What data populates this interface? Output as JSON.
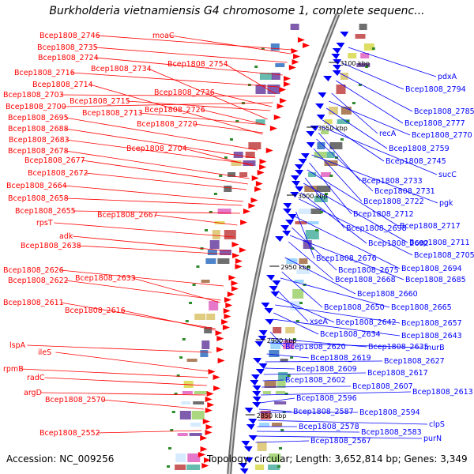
{
  "title": "Burkholderia vietnamiensis G4 chromosome 1, complete sequenc...",
  "footer": {
    "accession": "Accession: NC_009256",
    "summary": "Topology: circular; Length: 3,652,814 bp; Genes: 3,349"
  },
  "colors": {
    "forward_strand": "#ff0000",
    "reverse_strand": "#0000ff",
    "backbone": "#8c8c8c",
    "tick_marker": "#2e8b2e"
  },
  "ticks": [
    "3100 kbp",
    "3050 kbp",
    "3000 kbp",
    "2950 kbp",
    "2900 kbp",
    "2850 kbp"
  ],
  "left_labels": [
    "Bcep1808_2746",
    "moaC",
    "Bcep1808_2735",
    "Bcep1808_2754",
    "Bcep1808_2724",
    "Bcep1808_2734",
    "Bcep1808_2716",
    "Bcep1808_2714",
    "Bcep1808_2736",
    "Bcep1808_2703",
    "Bcep1808_2715",
    "Bcep1808_2700",
    "Bcep1808_2726",
    "Bcep1808_2713",
    "Bcep1808_2695",
    "Bcep1808_2720",
    "Bcep1808_2688",
    "Bcep1808_2683",
    "Bcep1808_2704",
    "Bcep1808_2678",
    "Bcep1808_2677",
    "Bcep1808_2672",
    "Bcep1808_2664",
    "Bcep1808_2658",
    "Bcep1808_2655",
    "Bcep1808_2667",
    "rpsT",
    "adk",
    "Bcep1808_2638",
    "Bcep1808_2626",
    "Bcep1808_2633",
    "Bcep1808_2622",
    "Bcep1808_2611",
    "Bcep1808_2616",
    "lspA",
    "ileS",
    "rpmB",
    "radC",
    "argD",
    "Bcep1808_2570",
    "Bcep1808_2552"
  ],
  "right_labels": [
    "pdxA",
    "Bcep1808_2794",
    "Bcep1808_2785",
    "Bcep1808_2777",
    "recA",
    "Bcep1808_2770",
    "Bcep1808_2759",
    "Bcep1808_2745",
    "sucC",
    "Bcep1808_2733",
    "Bcep1808_2731",
    "Bcep1808_2722",
    "pgk",
    "Bcep1808_2712",
    "Bcep1808_2717",
    "Bcep1808_2698",
    "Bcep1808_2711",
    "Bcep1808_2692",
    "Bcep1808_2705",
    "Bcep1808_2676",
    "Bcep1808_2694",
    "Bcep1808_2675",
    "Bcep1808_2685",
    "Bcep1808_2668",
    "Bcep1808_2660",
    "Bcep1808_2650",
    "Bcep1808_2665",
    "xseA",
    "Bcep1808_2642",
    "Bcep1808_2657",
    "Bcep1808_2634",
    "Bcep1808_2643",
    "Bcep1808_2620",
    "Bcep1808_2635",
    "murB",
    "Bcep1808_2619",
    "Bcep1808_2627",
    "Bcep1808_2609",
    "Bcep1808_2617",
    "Bcep1808_2602",
    "Bcep1808_2607",
    "Bcep1808_2613",
    "Bcep1808_2596",
    "Bcep1808_2587",
    "Bcep1808_2594",
    "clpS",
    "Bcep1808_2578",
    "Bcep1808_2583",
    "purN",
    "Bcep1808_2567"
  ]
}
